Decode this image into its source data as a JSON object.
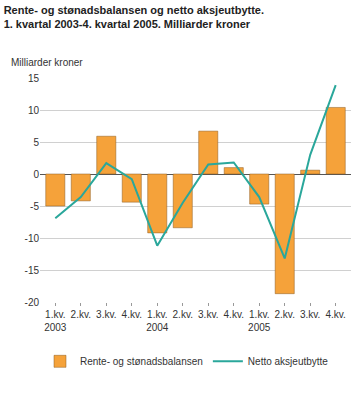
{
  "chart_data": {
    "type": "bar",
    "title": "Rente- og stønadsbalansen og netto aksjeutbytte.\n1. kvartal 2003-4. kvartal 2005. Milliarder kroner",
    "y_label": "Milliarder kroner",
    "categories": [
      "1.kv.\n2003",
      "2.kv.",
      "3.kv.",
      "4.kv.",
      "1.kv.\n2004",
      "2.kv.",
      "3.kv.",
      "4.kv.",
      "1.kv.\n2005",
      "2.kv.",
      "3.kv.",
      "4.kv."
    ],
    "series": [
      {
        "name": "Rente- og stønadsbalansen",
        "type": "bar",
        "color": "#f5a23a",
        "values": [
          -5.0,
          -4.2,
          5.9,
          -4.4,
          -9.2,
          -8.4,
          6.7,
          1.0,
          -4.7,
          -18.7,
          0.6,
          10.4
        ]
      },
      {
        "name": "Netto aksjeutbytte",
        "type": "line",
        "color": "#2aa79b",
        "values": [
          -6.9,
          -3.6,
          1.7,
          -0.8,
          -11.2,
          -4.5,
          1.5,
          1.8,
          -3.6,
          -13.2,
          3.0,
          13.9
        ]
      }
    ],
    "ylim": [
      -20,
      15
    ],
    "yticks": [
      -20,
      -15,
      -10,
      -5,
      0,
      5,
      10,
      15
    ],
    "grid": true,
    "legend": "bottom"
  }
}
